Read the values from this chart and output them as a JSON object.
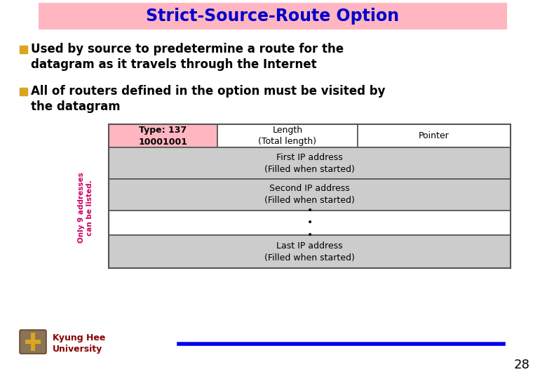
{
  "title": "Strict-Source-Route Option",
  "title_color": "#0000CC",
  "title_bg_color": "#FFB6C1",
  "bg_color": "#FFFFFF",
  "bullet_color": "#DAA520",
  "bullet_text_color": "#000000",
  "bullet1_line1": "Used by source to predetermine a route for the",
  "bullet1_line2": "datagram as it travels through the Internet",
  "bullet2_line1": "All of routers defined in the option must be visited by",
  "bullet2_line2": "the datagram",
  "table": {
    "type_label": "Type: 137\n10001001",
    "type_bg": "#FFB6C1",
    "length_label": "Length\n(Total length)",
    "pointer_label": "Pointer",
    "row1": "First IP address\n(Filled when started)",
    "row2": "Second IP address\n(Filled when started)",
    "row3": "•\n•\n•",
    "row4": "Last IP address\n(Filled when started)",
    "row_bg": "#CCCCCC",
    "dots_bg": "#FFFFFF",
    "border_color": "#555555",
    "side_label": "Only 9 addresses\ncan be listed.",
    "side_label_color": "#CC0066"
  },
  "footer_text1": "Kyung Hee",
  "footer_text2": "University",
  "footer_line_color": "#0000EE",
  "page_number": "28"
}
